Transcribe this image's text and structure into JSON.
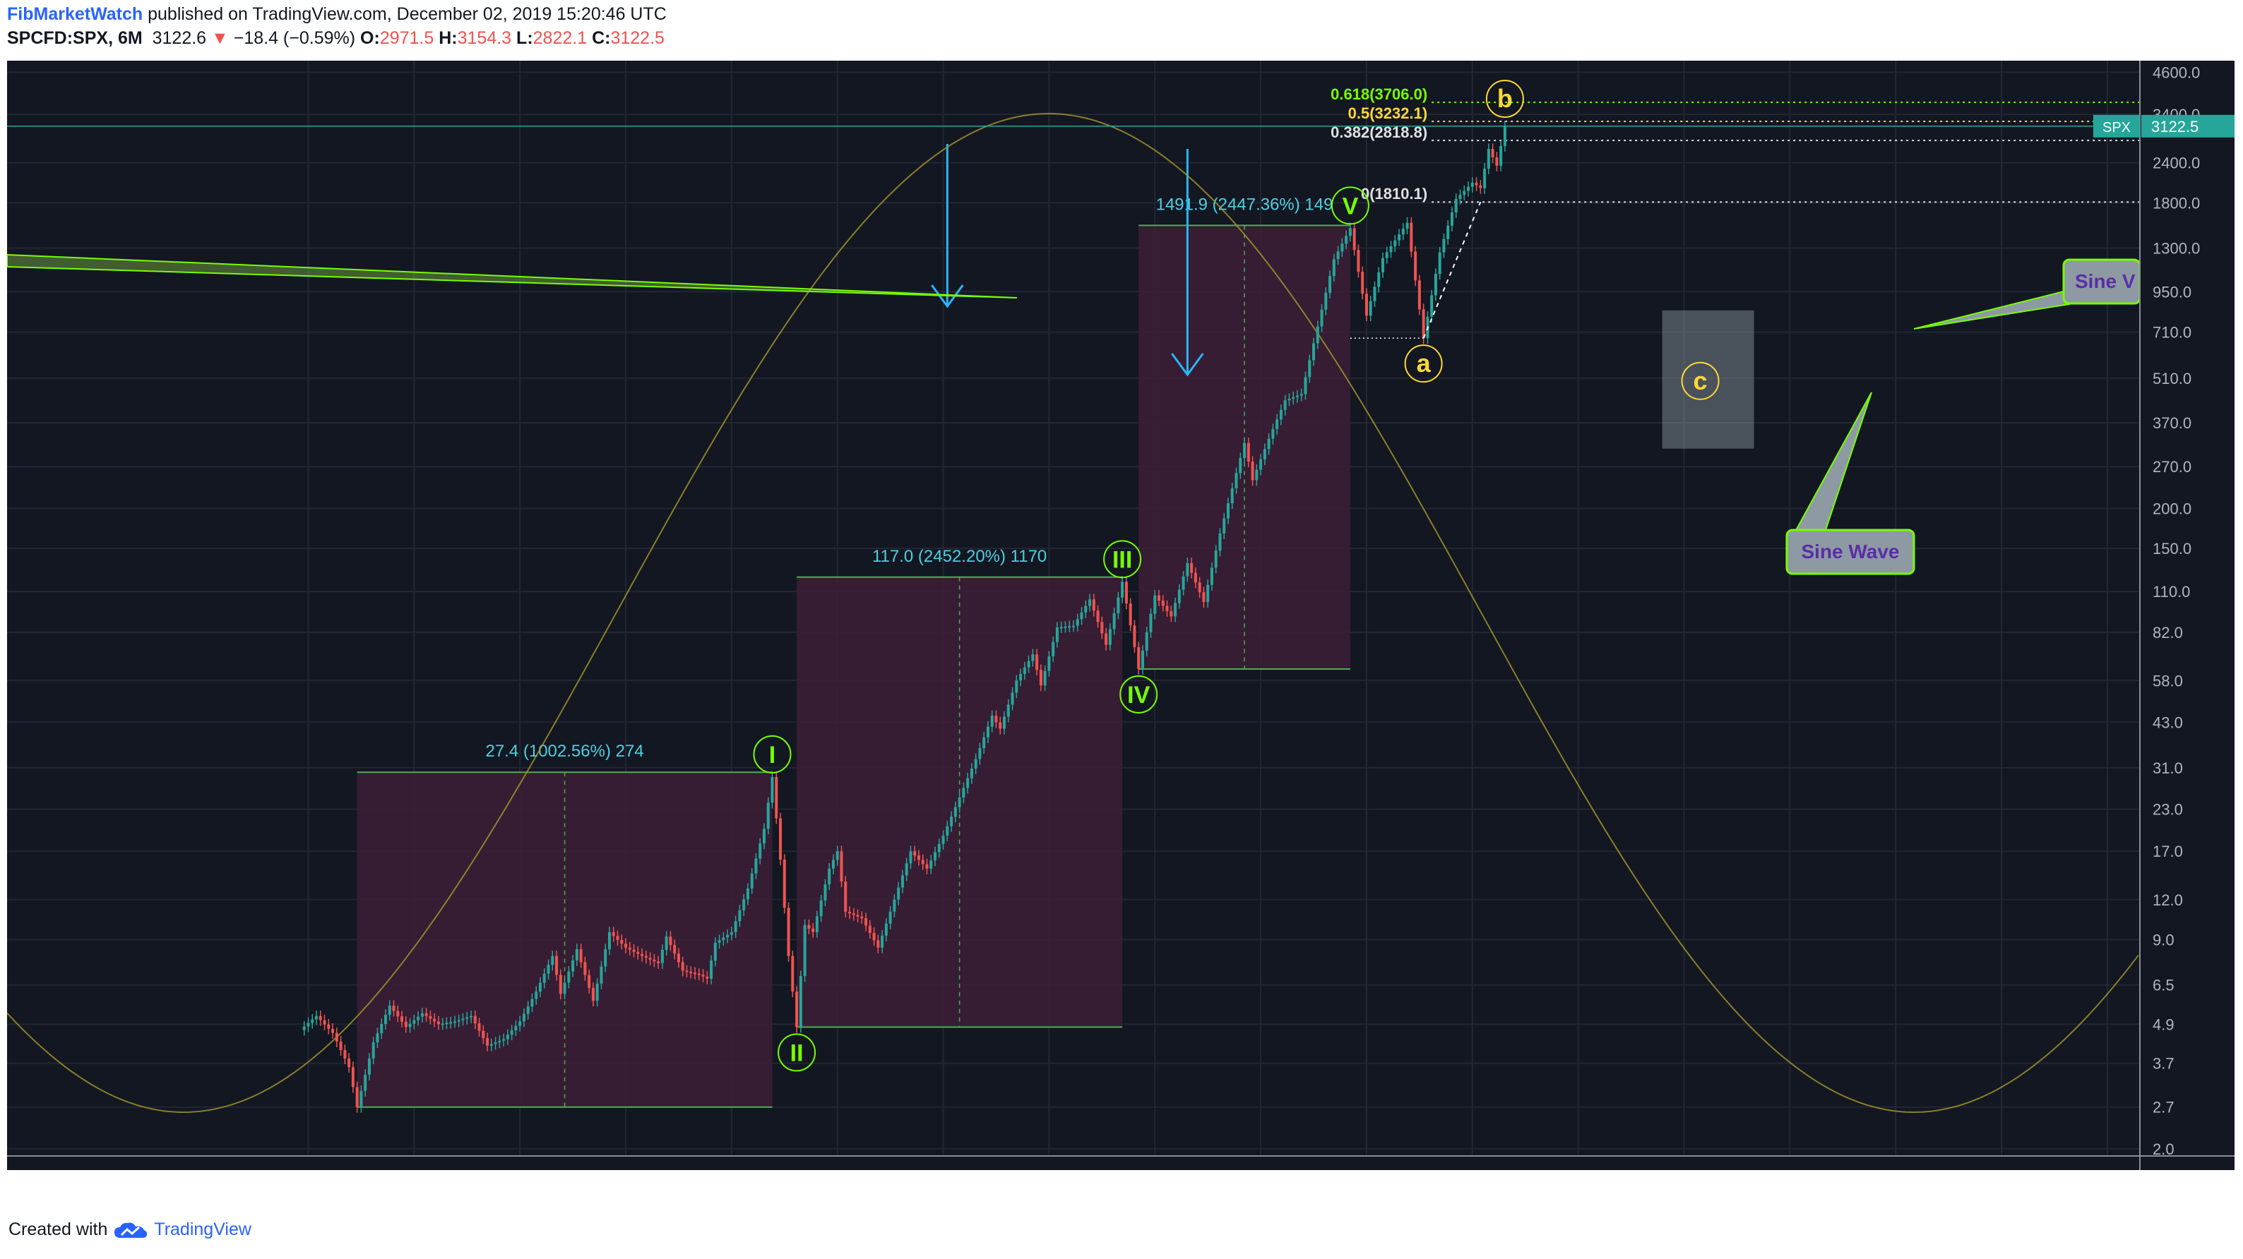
{
  "header": {
    "author": "FibMarketWatch",
    "published": "published on TradingView.com, December 02, 2019 15:20:46 UTC",
    "symbol": "SPCFD:SPX, 6M",
    "last": "3122.6",
    "change": "−18.4 (−0.59%)",
    "open_label": "O:",
    "open": "2971.5",
    "high_label": "H:",
    "high": "3154.3",
    "low_label": "L:",
    "low": "2822.1",
    "close_label": "C:",
    "close": "3122.5"
  },
  "footer": {
    "created": "Created with",
    "brand": "TradingView"
  },
  "colors": {
    "background": "#131722",
    "up": "#26a69a",
    "down": "#ef5350",
    "wave_green": "#4caf50",
    "fib_label": "#4dd0e1",
    "sine": "#a89a2c",
    "box": "#3d1f36"
  },
  "chart_data": {
    "type": "candlestick",
    "title": "",
    "scale": "log",
    "x_ticks": [
      "1872",
      "1885",
      "1898",
      "1911",
      "1924",
      "1937",
      "1950",
      "1963",
      "1976",
      "1989",
      "2002",
      "2015",
      "2028",
      "2041",
      "2054",
      "2067",
      "2080",
      "2093"
    ],
    "y_ticks": [
      "4600.0",
      "3400.0",
      "2400.0",
      "1800.0",
      "1300.0",
      "950.0",
      "710.0",
      "510.0",
      "370.0",
      "270.0",
      "200.0",
      "150.0",
      "110.0",
      "82.0",
      "58.0",
      "43.0",
      "31.0",
      "23.0",
      "17.0",
      "12.0",
      "9.0",
      "6.5",
      "4.9",
      "3.7",
      "2.7",
      "2.0"
    ],
    "ylim": [
      1.9,
      5000
    ],
    "xlim": [
      1835,
      2097
    ],
    "last_price_tag": {
      "symbol": "SPX",
      "value": "3122.5"
    },
    "price_path": [
      [
        1871,
        4.7
      ],
      [
        1873,
        5.2
      ],
      [
        1875,
        4.6
      ],
      [
        1877,
        3.6
      ],
      [
        1878,
        2.7
      ],
      [
        1880,
        4.3
      ],
      [
        1882,
        5.6
      ],
      [
        1884,
        4.8
      ],
      [
        1886,
        5.3
      ],
      [
        1888,
        4.9
      ],
      [
        1890,
        5.0
      ],
      [
        1892,
        5.2
      ],
      [
        1894,
        4.2
      ],
      [
        1896,
        4.4
      ],
      [
        1898,
        5.0
      ],
      [
        1900,
        6.2
      ],
      [
        1902,
        8.0
      ],
      [
        1903,
        6.1
      ],
      [
        1905,
        8.4
      ],
      [
        1907,
        5.8
      ],
      [
        1909,
        9.5
      ],
      [
        1911,
        8.5
      ],
      [
        1913,
        8.0
      ],
      [
        1915,
        7.6
      ],
      [
        1916,
        9.2
      ],
      [
        1918,
        7.2
      ],
      [
        1920,
        7.0
      ],
      [
        1921,
        6.8
      ],
      [
        1922,
        8.8
      ],
      [
        1924,
        9.5
      ],
      [
        1926,
        13.0
      ],
      [
        1928,
        20.0
      ],
      [
        1929,
        29.0
      ],
      [
        1930,
        16.0
      ],
      [
        1931,
        8.0
      ],
      [
        1932,
        4.8
      ],
      [
        1933,
        10.0
      ],
      [
        1934,
        9.5
      ],
      [
        1936,
        15.0
      ],
      [
        1937,
        17.0
      ],
      [
        1938,
        11.0
      ],
      [
        1940,
        10.5
      ],
      [
        1942,
        8.5
      ],
      [
        1944,
        12.0
      ],
      [
        1946,
        17.0
      ],
      [
        1948,
        15.0
      ],
      [
        1950,
        19.0
      ],
      [
        1952,
        25.0
      ],
      [
        1954,
        33.0
      ],
      [
        1956,
        45.0
      ],
      [
        1957,
        41.0
      ],
      [
        1959,
        58.0
      ],
      [
        1961,
        70.0
      ],
      [
        1962,
        56.0
      ],
      [
        1964,
        85.0
      ],
      [
        1966,
        86.0
      ],
      [
        1968,
        104.0
      ],
      [
        1970,
        75.0
      ],
      [
        1972,
        118.0
      ],
      [
        1974,
        63.0
      ],
      [
        1976,
        107.0
      ],
      [
        1978,
        92.0
      ],
      [
        1980,
        135.0
      ],
      [
        1982,
        102.0
      ],
      [
        1984,
        167.0
      ],
      [
        1987,
        320.0
      ],
      [
        1988,
        245.0
      ],
      [
        1990,
        330.0
      ],
      [
        1992,
        435.0
      ],
      [
        1994,
        455.0
      ],
      [
        1996,
        740.0
      ],
      [
        1998,
        1200.0
      ],
      [
        2000,
        1500.0
      ],
      [
        2002,
        800.0
      ],
      [
        2004,
        1210.0
      ],
      [
        2007,
        1560.0
      ],
      [
        2009,
        680.0
      ],
      [
        2011,
        1260.0
      ],
      [
        2013,
        1850.0
      ],
      [
        2015,
        2080.0
      ],
      [
        2016,
        2000.0
      ],
      [
        2017,
        2650.0
      ],
      [
        2018,
        2350.0
      ],
      [
        2019,
        3122.5
      ]
    ],
    "waves": [
      {
        "label": "I",
        "year": 1929,
        "price": 29.0,
        "pos": "above"
      },
      {
        "label": "II",
        "year": 1932,
        "price": 4.8,
        "pos": "below"
      },
      {
        "label": "III",
        "year": 1972,
        "price": 118.0,
        "pos": "above"
      },
      {
        "label": "IV",
        "year": 1974,
        "price": 63.0,
        "pos": "below"
      },
      {
        "label": "V",
        "year": 2000,
        "price": 1500.0,
        "pos": "above"
      },
      {
        "label": "a",
        "year": 2009,
        "price": 680.0,
        "pos": "below"
      },
      {
        "label": "b",
        "year": 2019,
        "price": 3232.0,
        "pos": "above"
      },
      {
        "label": "c",
        "year": 2043,
        "price": 500.0,
        "pos": "center"
      }
    ],
    "projection_boxes": [
      {
        "label": "27.4 (1002.56%) 274",
        "x0": 1878,
        "x1": 1929,
        "low": 2.7,
        "high": 30.0
      },
      {
        "label": "117.0 (2452.20%) 1170",
        "x0": 1932,
        "x1": 1972,
        "low": 4.8,
        "high": 122.0
      },
      {
        "label": "1491.9 (2447.36%) 149",
        "x0": 1974,
        "x1": 2000,
        "low": 63.0,
        "high": 1530.0
      }
    ],
    "fib_levels": [
      {
        "label": "0.618(3706.0)",
        "value": 3706.0
      },
      {
        "label": "0.5(3232.1)",
        "value": 3232.1
      },
      {
        "label": "0.382(2818.8)",
        "value": 2818.8
      },
      {
        "label": "0(1810.1)",
        "value": 1810.1
      }
    ],
    "callouts": [
      {
        "label": "Sine Wave"
      },
      {
        "label": "Sine V"
      }
    ]
  }
}
